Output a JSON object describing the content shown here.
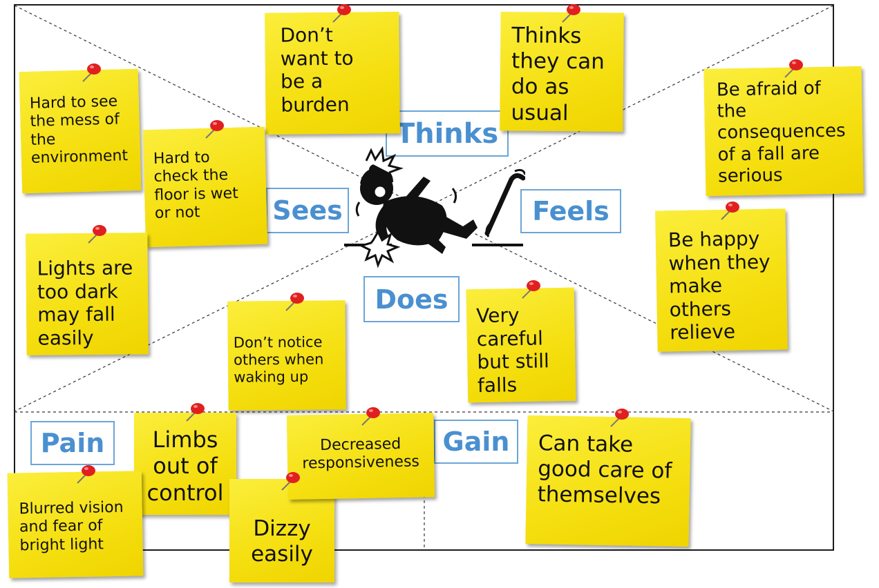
{
  "quadrants": {
    "thinks": "Thinks",
    "sees": "Sees",
    "feels": "Feels",
    "does": "Does",
    "pain": "Pain",
    "gain": "Gain"
  },
  "notes": {
    "burden": "Don’t\nwant to\nbe a\nburden",
    "usual": "Thinks\nthey can\ndo as\nusual",
    "mess": "Hard to see\nthe mess of\nthe\nenvironment",
    "wet": "Hard to\ncheck the\nfloor is wet\nor not",
    "afraid": "Be afraid of\nthe\nconsequences\nof a fall are\nserious",
    "lights": "Lights are\ntoo dark\nmay fall\neasily",
    "happy": "Be happy\nwhen they\nmake\nothers\nrelieve",
    "notice": "Don’t notice\nothers when\nwaking up",
    "careful": "Very\ncareful\nbut still\nfalls",
    "limbs": "Limbs\nout of\ncontrol",
    "blurred": "Blurred vision\nand fear of\nbright light",
    "dizzy": "Dizzy\neasily",
    "responsiveness": "Decreased\nresponsiveness",
    "care": "Can take\ngood care of\nthemselves"
  },
  "colors": {
    "note": "#f7e51a",
    "label_border": "#6aa5d8",
    "label_text": "#4a90d0",
    "pin": "#e02020"
  },
  "icons": {
    "center": "person-falling-icon",
    "pin": "pushpin-icon"
  }
}
